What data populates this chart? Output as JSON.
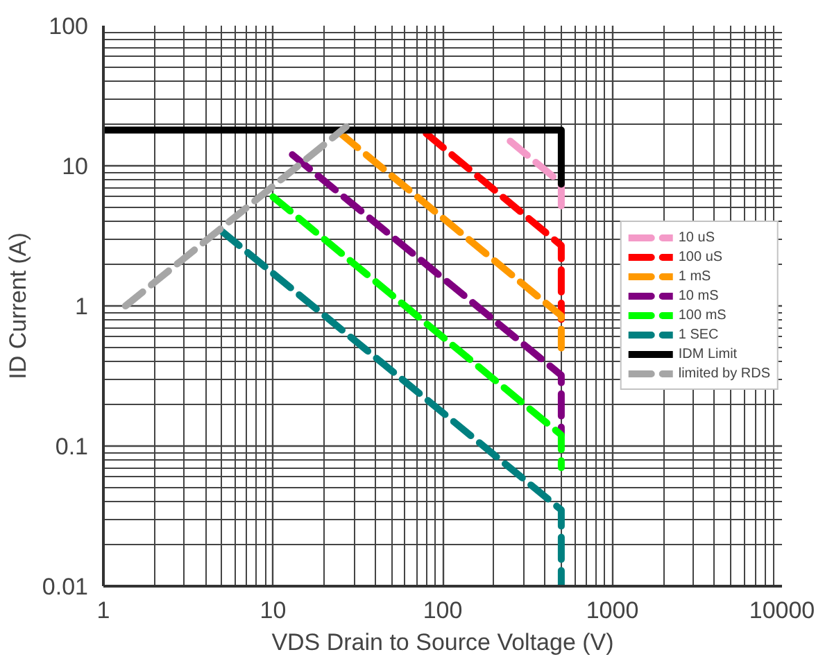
{
  "chart_data": {
    "type": "line",
    "xlabel": "VDS Drain to Source Voltage (V)",
    "ylabel": "ID Current (A)",
    "log": "xy",
    "grid": true,
    "legend": "right",
    "xlim": [
      1,
      10000
    ],
    "ylim": [
      0.01,
      100
    ],
    "xticks": [
      1,
      10,
      100,
      1000,
      10000
    ],
    "yticks": [
      0.01,
      0.1,
      1,
      10,
      100
    ],
    "series": [
      {
        "name": "10 uS",
        "color": "#f49ac8",
        "line_style": "dashed",
        "x": [
          250,
          500,
          500
        ],
        "values": [
          15,
          7.5,
          5
        ]
      },
      {
        "name": "100 uS",
        "color": "#ff0000",
        "line_style": "dashed",
        "x": [
          80,
          500,
          500
        ],
        "values": [
          17,
          2.7,
          0.8
        ]
      },
      {
        "name": "1 mS",
        "color": "#ff9900",
        "line_style": "dashed",
        "x": [
          25,
          500,
          500
        ],
        "values": [
          17,
          0.85,
          0.5
        ]
      },
      {
        "name": "10 mS",
        "color": "#800080",
        "line_style": "dashed",
        "x": [
          13,
          500,
          500
        ],
        "values": [
          12,
          0.32,
          0.12
        ]
      },
      {
        "name": "100 mS",
        "color": "#00ff00",
        "line_style": "dashed",
        "x": [
          10,
          500,
          500
        ],
        "values": [
          6,
          0.12,
          0.07
        ]
      },
      {
        "name": "1 SEC",
        "color": "#008080",
        "line_style": "dashed",
        "x": [
          5,
          500,
          500
        ],
        "values": [
          3.4,
          0.035,
          0.01
        ]
      },
      {
        "name": "IDM Limit",
        "color": "#000000",
        "line_style": "solid",
        "x": [
          1,
          500,
          500
        ],
        "values": [
          18,
          18,
          7.4
        ]
      },
      {
        "name": "limited by RDS",
        "color": "#a6a6a6",
        "line_style": "dashed",
        "x": [
          1.35,
          27
        ],
        "values": [
          1,
          19
        ]
      }
    ]
  }
}
